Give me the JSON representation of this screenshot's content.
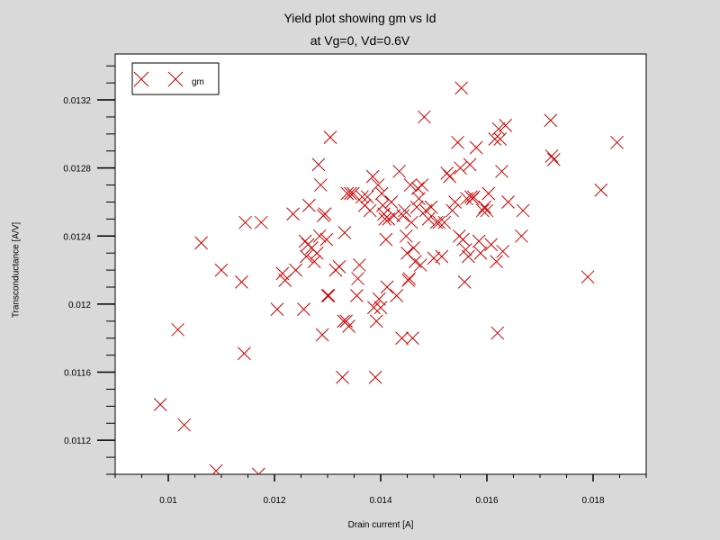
{
  "chart_data": {
    "type": "scatter",
    "title": "Yield plot showing gm vs Id",
    "subtitle": "at Vg=0, Vd=0.6V",
    "xlabel": "Drain current [A]",
    "ylabel": "Transconductance [A/V]",
    "xlim": [
      0.009,
      0.019
    ],
    "ylim": [
      0.011,
      0.01347
    ],
    "xticks": [
      0.01,
      0.012,
      0.014,
      0.016,
      0.018
    ],
    "xtick_labels": [
      "0.01",
      "0.012",
      "0.014",
      "0.016",
      "0.018"
    ],
    "yticks": [
      0.0112,
      0.0116,
      0.012,
      0.0124,
      0.0128,
      0.0132
    ],
    "ytick_labels": [
      "0.0112",
      "0.0116",
      "0.012",
      "0.0124",
      "0.0128",
      "0.0132"
    ],
    "grid": false,
    "legend_position": "top-left",
    "marker": "x",
    "series": [
      {
        "name": "gm",
        "color": "#cc0000",
        "points": [
          [
            0.00985,
            0.01141
          ],
          [
            0.01018,
            0.01185
          ],
          [
            0.0103,
            0.01129
          ],
          [
            0.01062,
            0.01236
          ],
          [
            0.0109,
            0.01102
          ],
          [
            0.011,
            0.0122
          ],
          [
            0.01138,
            0.01213
          ],
          [
            0.01143,
            0.01171
          ],
          [
            0.01145,
            0.01248
          ],
          [
            0.0117,
            0.011
          ],
          [
            0.01175,
            0.01248
          ],
          [
            0.01205,
            0.01197
          ],
          [
            0.01215,
            0.01218
          ],
          [
            0.0122,
            0.01214
          ],
          [
            0.01235,
            0.01253
          ],
          [
            0.0124,
            0.0122
          ],
          [
            0.01255,
            0.01197
          ],
          [
            0.01258,
            0.01237
          ],
          [
            0.0126,
            0.01228
          ],
          [
            0.01263,
            0.01235
          ],
          [
            0.01265,
            0.01258
          ],
          [
            0.0127,
            0.01233
          ],
          [
            0.01275,
            0.01225
          ],
          [
            0.0128,
            0.0123
          ],
          [
            0.01283,
            0.01282
          ],
          [
            0.01285,
            0.0124
          ],
          [
            0.01287,
            0.0127
          ],
          [
            0.0129,
            0.01182
          ],
          [
            0.01292,
            0.01252
          ],
          [
            0.01295,
            0.01253
          ],
          [
            0.01298,
            0.01238
          ],
          [
            0.013,
            0.01205
          ],
          [
            0.01302,
            0.01205
          ],
          [
            0.01305,
            0.01298
          ],
          [
            0.01315,
            0.0122
          ],
          [
            0.01322,
            0.01222
          ],
          [
            0.01328,
            0.01157
          ],
          [
            0.0133,
            0.0119
          ],
          [
            0.01332,
            0.01242
          ],
          [
            0.01335,
            0.0119
          ],
          [
            0.01337,
            0.01265
          ],
          [
            0.0134,
            0.01187
          ],
          [
            0.01343,
            0.01265
          ],
          [
            0.01348,
            0.01265
          ],
          [
            0.01355,
            0.01205
          ],
          [
            0.01357,
            0.01215
          ],
          [
            0.0136,
            0.01223
          ],
          [
            0.01365,
            0.01263
          ],
          [
            0.0137,
            0.01258
          ],
          [
            0.01375,
            0.01263
          ],
          [
            0.0138,
            0.01255
          ],
          [
            0.01385,
            0.01275
          ],
          [
            0.01387,
            0.01198
          ],
          [
            0.0139,
            0.01157
          ],
          [
            0.01392,
            0.0119
          ],
          [
            0.01395,
            0.0127
          ],
          [
            0.01397,
            0.01203
          ],
          [
            0.014,
            0.01198
          ],
          [
            0.01402,
            0.01265
          ],
          [
            0.01404,
            0.01258
          ],
          [
            0.01406,
            0.01253
          ],
          [
            0.01408,
            0.0125
          ],
          [
            0.0141,
            0.01238
          ],
          [
            0.01412,
            0.0121
          ],
          [
            0.01415,
            0.0125
          ],
          [
            0.0142,
            0.0126
          ],
          [
            0.01425,
            0.01252
          ],
          [
            0.0143,
            0.01205
          ],
          [
            0.01435,
            0.01278
          ],
          [
            0.0144,
            0.0118
          ],
          [
            0.01442,
            0.01252
          ],
          [
            0.01445,
            0.01255
          ],
          [
            0.01448,
            0.0124
          ],
          [
            0.0145,
            0.0123
          ],
          [
            0.01452,
            0.01214
          ],
          [
            0.01454,
            0.01215
          ],
          [
            0.01456,
            0.0127
          ],
          [
            0.01458,
            0.01248
          ],
          [
            0.0146,
            0.0118
          ],
          [
            0.01462,
            0.01233
          ],
          [
            0.01465,
            0.01225
          ],
          [
            0.01468,
            0.01257
          ],
          [
            0.0147,
            0.01268
          ],
          [
            0.01472,
            0.01262
          ],
          [
            0.01475,
            0.01223
          ],
          [
            0.01478,
            0.0127
          ],
          [
            0.01482,
            0.0131
          ],
          [
            0.01485,
            0.01255
          ],
          [
            0.0149,
            0.0125
          ],
          [
            0.01495,
            0.01257
          ],
          [
            0.015,
            0.01227
          ],
          [
            0.01505,
            0.01248
          ],
          [
            0.0151,
            0.01248
          ],
          [
            0.01515,
            0.01228
          ],
          [
            0.0152,
            0.01248
          ],
          [
            0.01525,
            0.01277
          ],
          [
            0.0153,
            0.01275
          ],
          [
            0.01535,
            0.01255
          ],
          [
            0.0154,
            0.0126
          ],
          [
            0.01545,
            0.01295
          ],
          [
            0.01548,
            0.0124
          ],
          [
            0.0155,
            0.0128
          ],
          [
            0.01552,
            0.01327
          ],
          [
            0.01555,
            0.01238
          ],
          [
            0.01558,
            0.01213
          ],
          [
            0.0156,
            0.01232
          ],
          [
            0.01562,
            0.01262
          ],
          [
            0.01565,
            0.01228
          ],
          [
            0.01568,
            0.01282
          ],
          [
            0.0157,
            0.01263
          ],
          [
            0.01573,
            0.01262
          ],
          [
            0.01575,
            0.01263
          ],
          [
            0.0158,
            0.01292
          ],
          [
            0.01585,
            0.01237
          ],
          [
            0.01588,
            0.0123
          ],
          [
            0.01592,
            0.01255
          ],
          [
            0.01596,
            0.01257
          ],
          [
            0.016,
            0.01255
          ],
          [
            0.01603,
            0.01265
          ],
          [
            0.01608,
            0.01235
          ],
          [
            0.01615,
            0.01297
          ],
          [
            0.01618,
            0.01225
          ],
          [
            0.0162,
            0.01183
          ],
          [
            0.01622,
            0.01303
          ],
          [
            0.01625,
            0.01297
          ],
          [
            0.01628,
            0.01278
          ],
          [
            0.0163,
            0.01231
          ],
          [
            0.01635,
            0.01305
          ],
          [
            0.0164,
            0.0126
          ],
          [
            0.01665,
            0.0124
          ],
          [
            0.01668,
            0.01255
          ],
          [
            0.0172,
            0.01308
          ],
          [
            0.01722,
            0.01287
          ],
          [
            0.01726,
            0.01285
          ],
          [
            0.0179,
            0.01216
          ],
          [
            0.01815,
            0.01267
          ],
          [
            0.01845,
            0.01295
          ]
        ]
      }
    ]
  }
}
